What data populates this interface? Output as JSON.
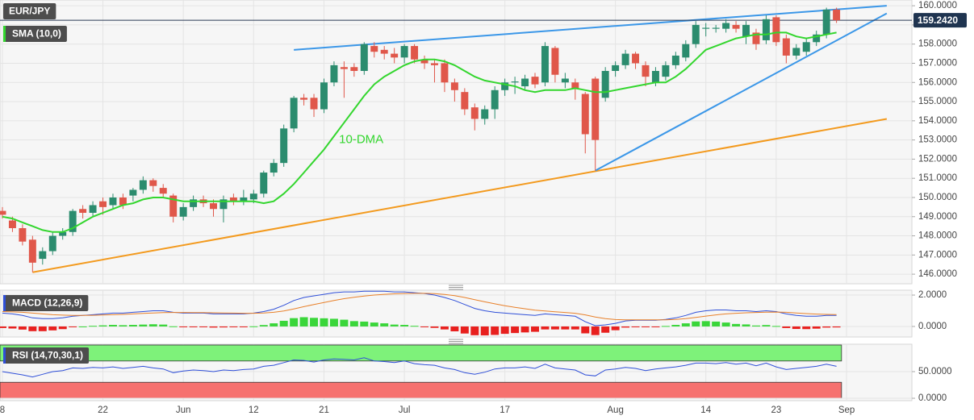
{
  "chart_data": [
    {
      "type": "candlestick",
      "symbol": "EUR/JPY",
      "categories": [
        "8",
        null,
        null,
        null,
        null,
        null,
        null,
        null,
        null,
        null,
        "22",
        null,
        null,
        null,
        null,
        null,
        null,
        null,
        "Jun",
        null,
        null,
        null,
        null,
        null,
        null,
        "12",
        null,
        null,
        null,
        null,
        null,
        null,
        "21",
        null,
        null,
        null,
        null,
        null,
        null,
        null,
        "Jul",
        null,
        null,
        null,
        null,
        null,
        null,
        null,
        null,
        null,
        "17",
        null,
        null,
        null,
        null,
        null,
        null,
        null,
        null,
        null,
        null,
        "Aug",
        null,
        null,
        null,
        null,
        null,
        null,
        null,
        null,
        "14",
        null,
        null,
        null,
        null,
        null,
        null,
        "23",
        null,
        null,
        null,
        null,
        null,
        null,
        "Sep"
      ],
      "ohlc": {
        "up_color": "#2b8c6e",
        "down_color": "#e0574a",
        "open": [
          149.3,
          148.8,
          148.4,
          147.8,
          146.8,
          147.2,
          148.0,
          148.2,
          149.4,
          149.2,
          149.8,
          149.6,
          150.0,
          150.1,
          150.4,
          150.9,
          150.5,
          150.1,
          149.0,
          149.5,
          149.9,
          149.7,
          149.4,
          150.0,
          149.8,
          149.9,
          150.2,
          151.3,
          151.8,
          153.6,
          155.2,
          155.2,
          154.6,
          156.0,
          156.8,
          156.8,
          156.6,
          157.9,
          157.7,
          157.5,
          157.3,
          157.9,
          157.2,
          157.0,
          157.0,
          156.0,
          155.5,
          154.7,
          154.1,
          154.6,
          155.6,
          156.0,
          155.8,
          156.3,
          156.0,
          157.8,
          156.0,
          156.0,
          155.4,
          156.2,
          155.2,
          156.6,
          156.9,
          157.5,
          156.9,
          156.0,
          156.3,
          156.9,
          157.3,
          158.0,
          158.8,
          158.8,
          158.8,
          159.0,
          158.4,
          158.6,
          158.2,
          159.4,
          158.3,
          157.4,
          157.6,
          158.1,
          158.5,
          159.8,
          null
        ],
        "high": [
          149.5,
          149.0,
          148.6,
          148.0,
          147.4,
          148.2,
          148.4,
          149.4,
          149.6,
          149.8,
          150.0,
          150.2,
          150.2,
          150.5,
          151.1,
          151.0,
          150.7,
          150.2,
          149.7,
          150.1,
          150.1,
          149.9,
          150.1,
          150.2,
          150.4,
          150.4,
          151.4,
          152.0,
          153.8,
          155.3,
          155.4,
          155.4,
          156.2,
          157.1,
          157.1,
          157.0,
          158.1,
          158.1,
          157.9,
          157.8,
          158.0,
          158.0,
          157.4,
          157.2,
          157.2,
          156.2,
          155.7,
          154.9,
          154.8,
          155.8,
          156.2,
          156.3,
          156.4,
          156.5,
          158.1,
          157.9,
          156.5,
          156.2,
          155.5,
          156.3,
          156.8,
          157.1,
          157.7,
          157.6,
          157.1,
          156.8,
          157.1,
          157.6,
          158.2,
          159.2,
          159.1,
          159.0,
          159.3,
          159.2,
          159.2,
          158.8,
          159.5,
          159.5,
          158.5,
          158.0,
          158.3,
          158.7,
          159.9,
          159.9,
          null
        ],
        "low": [
          148.9,
          148.2,
          147.5,
          146.1,
          146.5,
          147.0,
          147.8,
          148.0,
          148.9,
          149.0,
          149.1,
          149.4,
          149.4,
          149.8,
          150.2,
          150.3,
          150.0,
          148.7,
          148.8,
          149.3,
          149.5,
          149.0,
          148.7,
          149.6,
          149.6,
          149.7,
          150.0,
          151.1,
          151.6,
          153.4,
          154.8,
          154.2,
          154.4,
          155.8,
          155.2,
          156.3,
          156.4,
          157.3,
          157.2,
          157.0,
          157.0,
          157.0,
          156.7,
          156.0,
          155.5,
          155.0,
          154.3,
          153.5,
          153.8,
          154.1,
          155.3,
          155.4,
          155.6,
          155.7,
          155.8,
          156.0,
          155.7,
          155.1,
          152.3,
          151.4,
          155.0,
          156.3,
          156.7,
          156.7,
          155.8,
          155.8,
          156.1,
          156.7,
          157.1,
          157.8,
          158.4,
          158.6,
          158.6,
          158.6,
          158.0,
          157.7,
          158.0,
          157.9,
          157.0,
          157.2,
          157.4,
          157.9,
          158.3,
          159.1,
          null
        ],
        "close": [
          149.1,
          148.4,
          147.7,
          146.6,
          147.2,
          148.0,
          148.2,
          149.3,
          149.2,
          149.6,
          149.5,
          150.0,
          149.6,
          150.4,
          150.9,
          150.6,
          150.2,
          149.0,
          149.5,
          149.9,
          149.7,
          149.4,
          149.9,
          149.8,
          150.0,
          150.2,
          151.3,
          151.8,
          153.6,
          155.2,
          155.1,
          154.6,
          156.0,
          156.9,
          156.7,
          156.6,
          158.0,
          157.6,
          157.5,
          157.3,
          157.9,
          157.2,
          157.0,
          156.9,
          156.0,
          155.6,
          154.6,
          154.1,
          154.6,
          155.6,
          156.0,
          156.05,
          156.2,
          155.9,
          157.9,
          156.4,
          156.2,
          155.7,
          153.3,
          153.0,
          156.6,
          156.9,
          157.5,
          157.0,
          156.3,
          156.6,
          156.9,
          157.4,
          158.0,
          159.0,
          158.85,
          158.85,
          159.1,
          158.8,
          159.0,
          158.0,
          159.3,
          158.1,
          157.4,
          157.8,
          158.1,
          158.5,
          159.8,
          159.242,
          null
        ]
      },
      "overlays": [
        {
          "name": "SMA (10,0)",
          "color": "#33d62e",
          "values": [
            149.0,
            148.9,
            148.7,
            148.5,
            148.3,
            148.2,
            148.2,
            148.4,
            148.7,
            149.0,
            149.2,
            149.4,
            149.6,
            149.7,
            149.9,
            150.0,
            150.0,
            149.9,
            149.8,
            149.8,
            149.8,
            149.8,
            149.8,
            149.8,
            149.8,
            149.8,
            149.7,
            149.8,
            150.2,
            150.7,
            151.3,
            151.9,
            152.5,
            153.2,
            153.9,
            154.6,
            155.3,
            155.9,
            156.3,
            156.6,
            156.9,
            157.1,
            157.2,
            157.2,
            157.1,
            156.9,
            156.6,
            156.3,
            156.1,
            156.0,
            155.9,
            155.8,
            155.6,
            155.5,
            155.6,
            155.6,
            155.6,
            155.7,
            155.6,
            155.5,
            155.5,
            155.6,
            155.7,
            155.8,
            155.9,
            156.0,
            156.0,
            156.3,
            156.7,
            157.2,
            157.7,
            157.9,
            158.1,
            158.3,
            158.4,
            158.5,
            158.5,
            158.6,
            158.6,
            158.4,
            158.3,
            158.4,
            158.5,
            158.6,
            null
          ]
        }
      ],
      "annotations": [
        {
          "text": "10-DMA",
          "x": 33.5,
          "y": 153.0,
          "color": "#33d62e"
        }
      ],
      "trendlines": [
        {
          "color": "#f39a1e",
          "points": [
            [
              3,
              146.1
            ],
            [
              88,
              154.1
            ]
          ]
        },
        {
          "color": "#3b97e8",
          "points": [
            [
              29,
              157.7
            ],
            [
              88,
              160.0
            ]
          ]
        },
        {
          "color": "#3b97e8",
          "points": [
            [
              59,
              151.4
            ],
            [
              88,
              159.6
            ]
          ]
        }
      ],
      "last_price": {
        "value": 159.242,
        "label": "159.2420"
      },
      "xlim": [
        -0.24,
        90.5
      ],
      "ylim": [
        145.5,
        160.3
      ],
      "yticks": [
        {
          "value": 146,
          "label": "146.0000"
        },
        {
          "value": 147,
          "label": "147.0000"
        },
        {
          "value": 148,
          "label": "148.0000"
        },
        {
          "value": 149,
          "label": "149.0000"
        },
        {
          "value": 150,
          "label": "150.0000"
        },
        {
          "value": 151,
          "label": "151.0000"
        },
        {
          "value": 152,
          "label": "152.0000"
        },
        {
          "value": 153,
          "label": "153.0000"
        },
        {
          "value": 154,
          "label": "154.0000"
        },
        {
          "value": 155,
          "label": "155.0000"
        },
        {
          "value": 156,
          "label": "156.0000"
        },
        {
          "value": 157,
          "label": "157.0000"
        },
        {
          "value": 158,
          "label": "158.0000"
        },
        {
          "value": 159,
          "label": "159.0000"
        },
        {
          "value": 160,
          "label": "160.0000"
        }
      ],
      "grid": true
    },
    {
      "type": "macd",
      "title": "MACD (12,26,9)",
      "series": [
        {
          "color": "#2f4fd8",
          "values": [
            0.85,
            0.8,
            0.7,
            0.55,
            0.5,
            0.5,
            0.55,
            0.65,
            0.7,
            0.75,
            0.8,
            0.85,
            0.85,
            0.9,
            0.95,
            1.0,
            1.0,
            0.9,
            0.85,
            0.85,
            0.85,
            0.8,
            0.8,
            0.8,
            0.8,
            0.85,
            0.95,
            1.1,
            1.35,
            1.65,
            1.85,
            1.95,
            2.05,
            2.15,
            2.2,
            2.2,
            2.25,
            2.25,
            2.25,
            2.2,
            2.2,
            2.15,
            2.1,
            2.0,
            1.85,
            1.65,
            1.4,
            1.15,
            1.0,
            0.9,
            0.85,
            0.8,
            0.75,
            0.7,
            0.8,
            0.75,
            0.7,
            0.65,
            0.3,
            0.05,
            0.1,
            0.2,
            0.35,
            0.4,
            0.4,
            0.4,
            0.45,
            0.55,
            0.7,
            0.9,
            1.0,
            1.05,
            1.05,
            1.0,
            1.0,
            0.95,
            1.0,
            0.95,
            0.8,
            0.7,
            0.65,
            0.65,
            0.7,
            0.7,
            null
          ]
        },
        {
          "color": "#e8802a",
          "values": [
            0.95,
            0.93,
            0.9,
            0.85,
            0.8,
            0.75,
            0.72,
            0.7,
            0.7,
            0.71,
            0.73,
            0.75,
            0.77,
            0.8,
            0.83,
            0.86,
            0.88,
            0.89,
            0.89,
            0.88,
            0.88,
            0.87,
            0.86,
            0.85,
            0.84,
            0.84,
            0.86,
            0.9,
            0.99,
            1.12,
            1.26,
            1.4,
            1.53,
            1.66,
            1.77,
            1.86,
            1.94,
            2.0,
            2.05,
            2.08,
            2.1,
            2.11,
            2.11,
            2.09,
            2.04,
            1.96,
            1.85,
            1.71,
            1.57,
            1.44,
            1.32,
            1.22,
            1.13,
            1.04,
            0.99,
            0.94,
            0.89,
            0.84,
            0.74,
            0.6,
            0.5,
            0.44,
            0.42,
            0.42,
            0.42,
            0.42,
            0.42,
            0.45,
            0.5,
            0.58,
            0.66,
            0.74,
            0.8,
            0.84,
            0.87,
            0.89,
            0.91,
            0.92,
            0.9,
            0.86,
            0.82,
            0.79,
            0.77,
            0.76,
            null
          ]
        }
      ],
      "histogram": {
        "up_color": "#3ad63a",
        "down_color": "#e8201e",
        "values": [
          -0.1,
          -0.13,
          -0.2,
          -0.3,
          -0.3,
          -0.25,
          -0.17,
          -0.05,
          0,
          0.04,
          0.07,
          0.1,
          0.08,
          0.1,
          0.12,
          0.14,
          0.12,
          0.01,
          -0.04,
          -0.03,
          -0.03,
          -0.07,
          -0.06,
          -0.05,
          -0.04,
          0.01,
          0.09,
          0.2,
          0.36,
          0.53,
          0.59,
          0.55,
          0.52,
          0.49,
          0.43,
          0.34,
          0.31,
          0.25,
          0.2,
          0.12,
          0.1,
          0.04,
          -0.01,
          -0.09,
          -0.19,
          -0.31,
          -0.45,
          -0.56,
          -0.57,
          -0.54,
          -0.47,
          -0.42,
          -0.38,
          -0.34,
          -0.19,
          -0.19,
          -0.19,
          -0.19,
          -0.44,
          -0.55,
          -0.4,
          -0.24,
          -0.07,
          -0.02,
          -0.02,
          -0.02,
          0.03,
          0.1,
          0.2,
          0.32,
          0.34,
          0.31,
          0.25,
          0.16,
          0.13,
          0.06,
          0.09,
          0.03,
          -0.1,
          -0.16,
          -0.17,
          -0.14,
          -0.07,
          -0.06,
          null
        ]
      },
      "ylim": [
        -0.67,
        2.31
      ],
      "yticks": [
        {
          "value": 0,
          "label": "0.0000"
        },
        {
          "value": 2,
          "label": "2.0000"
        }
      ]
    },
    {
      "type": "rsi",
      "title": "RSI (14,70,30,1)",
      "color": "#2f4fd8",
      "values": [
        50,
        47,
        44,
        40,
        45,
        50,
        52,
        57,
        56,
        58,
        57,
        59,
        56,
        58,
        60,
        57,
        55,
        48,
        51,
        53,
        52,
        50,
        53,
        52,
        54,
        55,
        60,
        62,
        67,
        72,
        71,
        68,
        72,
        74,
        73,
        72,
        76,
        70,
        69,
        67,
        70,
        65,
        63,
        62,
        57,
        54,
        48,
        45,
        49,
        55,
        57,
        57,
        59,
        56,
        64,
        57,
        55,
        53,
        44,
        42,
        53,
        55,
        58,
        56,
        52,
        55,
        57,
        59,
        62,
        66,
        66,
        65,
        67,
        64,
        66,
        61,
        66,
        59,
        54,
        56,
        58,
        60,
        64,
        60,
        null
      ],
      "bands": [
        {
          "from": 70,
          "to": 100,
          "color": "#7ef27a"
        },
        {
          "from": 0,
          "to": 30,
          "color": "#f6716f"
        }
      ],
      "ylim": [
        -4.5,
        101.5
      ],
      "yticks": [
        {
          "value": 0,
          "label": "0.0000"
        },
        {
          "value": 50,
          "label": "50.0000"
        }
      ]
    }
  ]
}
